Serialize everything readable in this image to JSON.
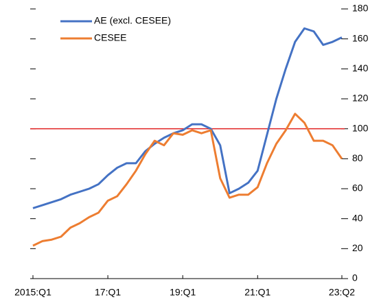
{
  "chart_data": {
    "type": "line",
    "categories": [
      "2015:Q1",
      null,
      null,
      null,
      null,
      null,
      null,
      null,
      "17:Q1",
      null,
      null,
      null,
      null,
      null,
      null,
      null,
      "19:Q1",
      null,
      null,
      null,
      null,
      null,
      null,
      null,
      "21:Q1",
      null,
      null,
      null,
      null,
      null,
      null,
      null,
      null,
      "23:Q2"
    ],
    "series": [
      {
        "name": "AE (excl. CESEE)",
        "color": "#4472c4",
        "values": [
          47,
          49,
          51,
          53,
          56,
          58,
          60,
          63,
          69,
          74,
          77,
          77,
          85,
          90,
          94,
          97,
          99,
          103,
          103,
          100,
          89,
          57,
          60,
          64,
          72,
          96,
          120,
          140,
          158,
          167,
          165,
          156,
          158,
          161
        ]
      },
      {
        "name": "CESEE",
        "color": "#ed7d31",
        "values": [
          22,
          25,
          26,
          28,
          34,
          37,
          41,
          44,
          52,
          55,
          63,
          72,
          83,
          92,
          89,
          97,
          96,
          99,
          97,
          99,
          67,
          54,
          56,
          56,
          61,
          77,
          90,
          99,
          110,
          104,
          92,
          92,
          89,
          80
        ]
      }
    ],
    "ylim": [
      0,
      180
    ],
    "yticks": [
      0,
      20,
      40,
      60,
      80,
      100,
      120,
      140,
      160,
      180
    ],
    "reference_line": {
      "value": 100,
      "color": "#e02020"
    }
  }
}
